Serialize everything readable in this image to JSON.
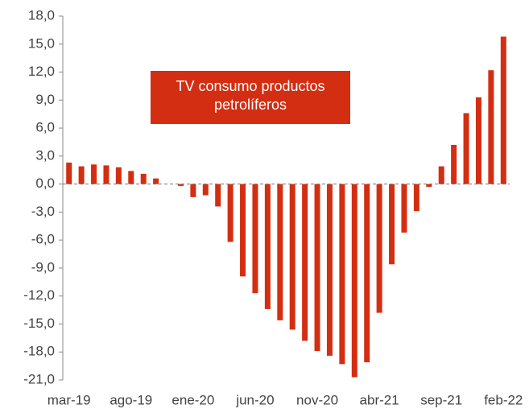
{
  "chart_data": {
    "type": "bar",
    "annotation": "TV consumo productos petrolíferos",
    "categories": [
      "mar-19",
      null,
      null,
      null,
      null,
      "ago-19",
      null,
      null,
      null,
      null,
      "ene-20",
      null,
      null,
      null,
      null,
      "jun-20",
      null,
      null,
      null,
      null,
      "nov-20",
      null,
      null,
      null,
      null,
      "abr-21",
      null,
      null,
      null,
      null,
      "sep-21",
      null,
      null,
      null,
      null,
      "feb-22"
    ],
    "values": [
      2.3,
      1.9,
      2.1,
      2.0,
      1.8,
      1.4,
      1.1,
      0.6,
      0.0,
      -0.2,
      -1.4,
      -1.2,
      -2.4,
      -6.2,
      -9.9,
      -11.7,
      -13.4,
      -14.6,
      -15.6,
      -16.8,
      -17.9,
      -18.4,
      -19.3,
      -20.7,
      -19.1,
      -13.8,
      -8.6,
      -5.2,
      -2.9,
      -0.3,
      1.9,
      4.2,
      7.6,
      9.3,
      12.2,
      15.8
    ],
    "color": "#d42e12",
    "ylim": [
      -21,
      18
    ],
    "yticks": [
      {
        "value": -21,
        "label": "-21,0"
      },
      {
        "value": -18,
        "label": "-18,0"
      },
      {
        "value": -15,
        "label": "-15,0"
      },
      {
        "value": -12,
        "label": "-12,0"
      },
      {
        "value": -9,
        "label": "-9,0"
      },
      {
        "value": -6,
        "label": "-6,0"
      },
      {
        "value": -3,
        "label": "-3,0"
      },
      {
        "value": 0,
        "label": "0,0"
      },
      {
        "value": 3,
        "label": "3,0"
      },
      {
        "value": 6,
        "label": "6,0"
      },
      {
        "value": 9,
        "label": "9,0"
      },
      {
        "value": 12,
        "label": "12,0"
      },
      {
        "value": 15,
        "label": "15,0"
      },
      {
        "value": 18,
        "label": "18,0"
      }
    ],
    "grid": false
  }
}
